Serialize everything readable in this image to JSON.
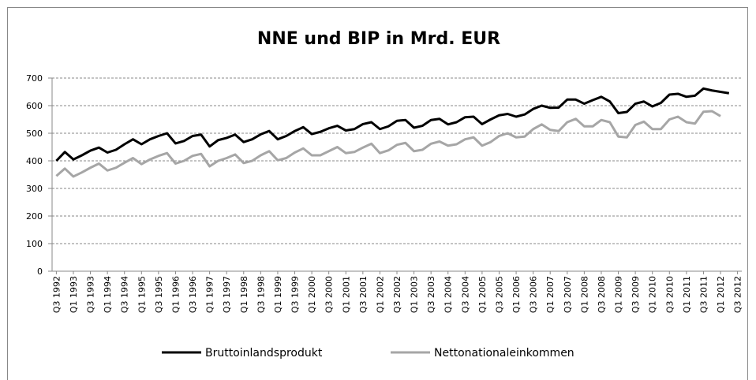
{
  "chart_data": {
    "type": "line",
    "title": "NNE und BIP in Mrd. EUR",
    "categories": [
      "Q3 1992",
      null,
      "Q1 1993",
      null,
      "Q3 1993",
      null,
      "Q1 1994",
      null,
      "Q3 1994",
      null,
      "Q1 1995",
      null,
      "Q3 1995",
      null,
      "Q1 1996",
      null,
      "Q3 1996",
      null,
      "Q1 1997",
      null,
      "Q3 1997",
      null,
      "Q1 1998",
      null,
      "Q3 1998",
      null,
      "Q1 1999",
      null,
      "Q3 1999",
      null,
      "Q1 2000",
      null,
      "Q3 2000",
      null,
      "Q1 2001",
      null,
      "Q3 2001",
      null,
      "Q1 2002",
      null,
      "Q3 2002",
      null,
      "Q1 2003",
      null,
      "Q3 2003",
      null,
      "Q1 2004",
      null,
      "Q3 2004",
      null,
      "Q1 2005",
      null,
      "Q3 2005",
      null,
      "Q1 2006",
      null,
      "Q3 2006",
      null,
      "Q1 2007",
      null,
      "Q3 2007",
      null,
      "Q1 2008",
      null,
      "Q3 2008",
      null,
      "Q1 2009",
      null,
      "Q3 2009",
      null,
      "Q1 2010",
      null,
      "Q3 2010",
      null,
      "Q1 2011",
      null,
      "Q3 2011",
      null,
      "Q1 2012",
      null,
      "Q3 2012"
    ],
    "series": [
      {
        "name": "Bruttoinlandsprodukt",
        "color": "#000000",
        "values": [
          400,
          432,
          405,
          420,
          437,
          448,
          430,
          440,
          460,
          478,
          460,
          478,
          490,
          500,
          463,
          472,
          490,
          495,
          452,
          475,
          483,
          495,
          468,
          478,
          496,
          508,
          478,
          490,
          508,
          522,
          497,
          505,
          518,
          527,
          510,
          515,
          533,
          540,
          515,
          525,
          545,
          548,
          520,
          527,
          548,
          552,
          532,
          540,
          558,
          560,
          533,
          550,
          565,
          570,
          560,
          568,
          588,
          600,
          592,
          593,
          622,
          622,
          607,
          620,
          632,
          615,
          573,
          577,
          607,
          615,
          597,
          610,
          640,
          643,
          632,
          636,
          662,
          655,
          650,
          645,
          null
        ]
      },
      {
        "name": "Nettonationaleinkommen",
        "color": "#a6a6a6",
        "values": [
          345,
          372,
          343,
          358,
          375,
          390,
          365,
          375,
          393,
          410,
          388,
          405,
          418,
          428,
          390,
          400,
          418,
          425,
          380,
          400,
          410,
          423,
          392,
          400,
          420,
          435,
          402,
          410,
          430,
          445,
          420,
          420,
          435,
          450,
          428,
          432,
          448,
          462,
          428,
          438,
          458,
          465,
          435,
          440,
          462,
          470,
          455,
          460,
          478,
          485,
          455,
          468,
          490,
          500,
          485,
          488,
          515,
          532,
          512,
          508,
          540,
          552,
          525,
          525,
          548,
          540,
          488,
          485,
          530,
          542,
          515,
          515,
          550,
          560,
          540,
          535,
          578,
          580,
          562,
          null,
          null
        ]
      }
    ],
    "ylim": [
      0,
      700
    ],
    "yticks": [
      0,
      100,
      200,
      300,
      400,
      500,
      600,
      700
    ],
    "grid": true
  }
}
